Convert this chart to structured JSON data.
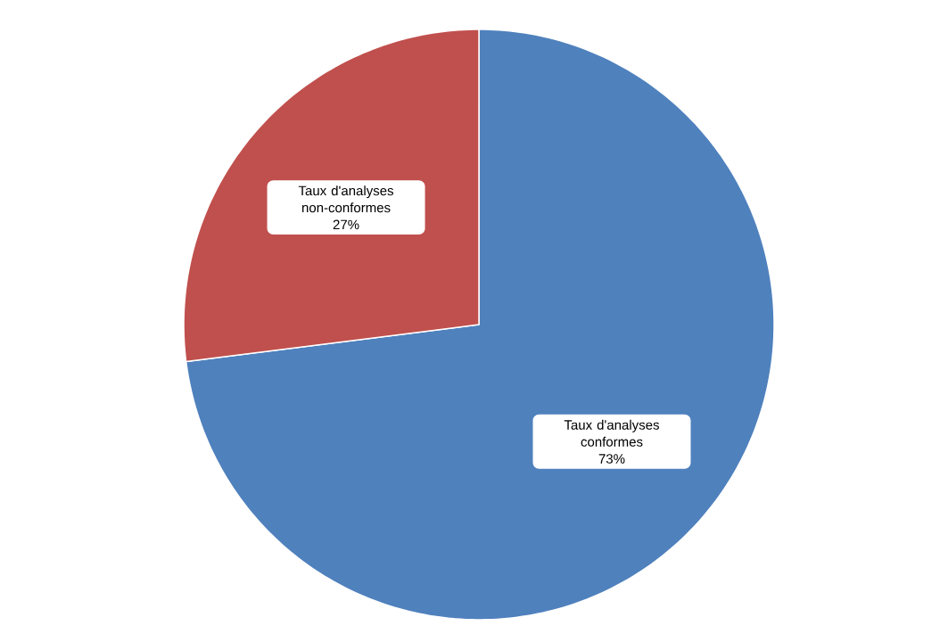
{
  "chart_data": {
    "type": "pie",
    "categories": [
      "Taux d'analyses conformes",
      "Taux d'analyses non-conformes"
    ],
    "values": [
      73,
      27
    ],
    "colors": [
      "#4f81bd",
      "#c0504d"
    ],
    "value_labels": [
      "73%",
      "27%"
    ]
  }
}
